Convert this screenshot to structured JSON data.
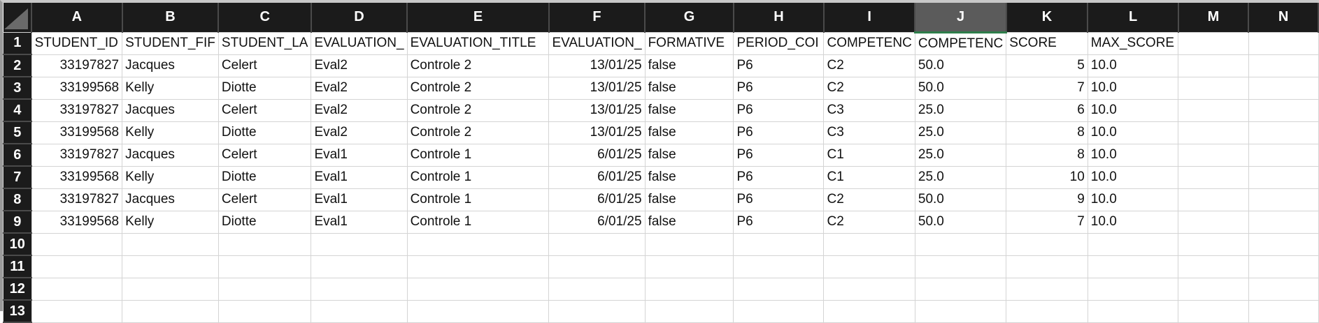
{
  "columns": [
    "A",
    "B",
    "C",
    "D",
    "E",
    "F",
    "G",
    "H",
    "I",
    "J",
    "K",
    "L",
    "M",
    "N"
  ],
  "selected_column": "J",
  "accent_color": "#2e7d4a",
  "headers": [
    "STUDENT_ID",
    "STUDENT_FIF",
    "STUDENT_LA",
    "EVALUATION_",
    "EVALUATION_TITLE",
    "EVALUATION_",
    "FORMATIVE",
    "PERIOD_COI",
    "COMPETENC",
    "COMPETENC",
    "SCORE",
    "MAX_SCORE",
    "",
    ""
  ],
  "rows": [
    [
      "33197827",
      "Jacques",
      "Celert",
      "Eval2",
      "Controle 2",
      "13/01/25",
      "false",
      "P6",
      "C2",
      "50.0",
      "5",
      "10.0",
      "",
      ""
    ],
    [
      "33199568",
      "Kelly",
      "Diotte",
      "Eval2",
      "Controle 2",
      "13/01/25",
      "false",
      "P6",
      "C2",
      "50.0",
      "7",
      "10.0",
      "",
      ""
    ],
    [
      "33197827",
      "Jacques",
      "Celert",
      "Eval2",
      "Controle 2",
      "13/01/25",
      "false",
      "P6",
      "C3",
      "25.0",
      "6",
      "10.0",
      "",
      ""
    ],
    [
      "33199568",
      "Kelly",
      "Diotte",
      "Eval2",
      "Controle 2",
      "13/01/25",
      "false",
      "P6",
      "C3",
      "25.0",
      "8",
      "10.0",
      "",
      ""
    ],
    [
      "33197827",
      "Jacques",
      "Celert",
      "Eval1",
      "Controle 1",
      "6/01/25",
      "false",
      "P6",
      "C1",
      "25.0",
      "8",
      "10.0",
      "",
      ""
    ],
    [
      "33199568",
      "Kelly",
      "Diotte",
      "Eval1",
      "Controle 1",
      "6/01/25",
      "false",
      "P6",
      "C1",
      "25.0",
      "10",
      "10.0",
      "",
      ""
    ],
    [
      "33197827",
      "Jacques",
      "Celert",
      "Eval1",
      "Controle 1",
      "6/01/25",
      "false",
      "P6",
      "C2",
      "50.0",
      "9",
      "10.0",
      "",
      ""
    ],
    [
      "33199568",
      "Kelly",
      "Diotte",
      "Eval1",
      "Controle 1",
      "6/01/25",
      "false",
      "P6",
      "C2",
      "50.0",
      "7",
      "10.0",
      "",
      ""
    ]
  ],
  "row_numbers": [
    "1",
    "2",
    "3",
    "4",
    "5",
    "6",
    "7",
    "8",
    "9",
    "10",
    "11",
    "12",
    "13"
  ]
}
